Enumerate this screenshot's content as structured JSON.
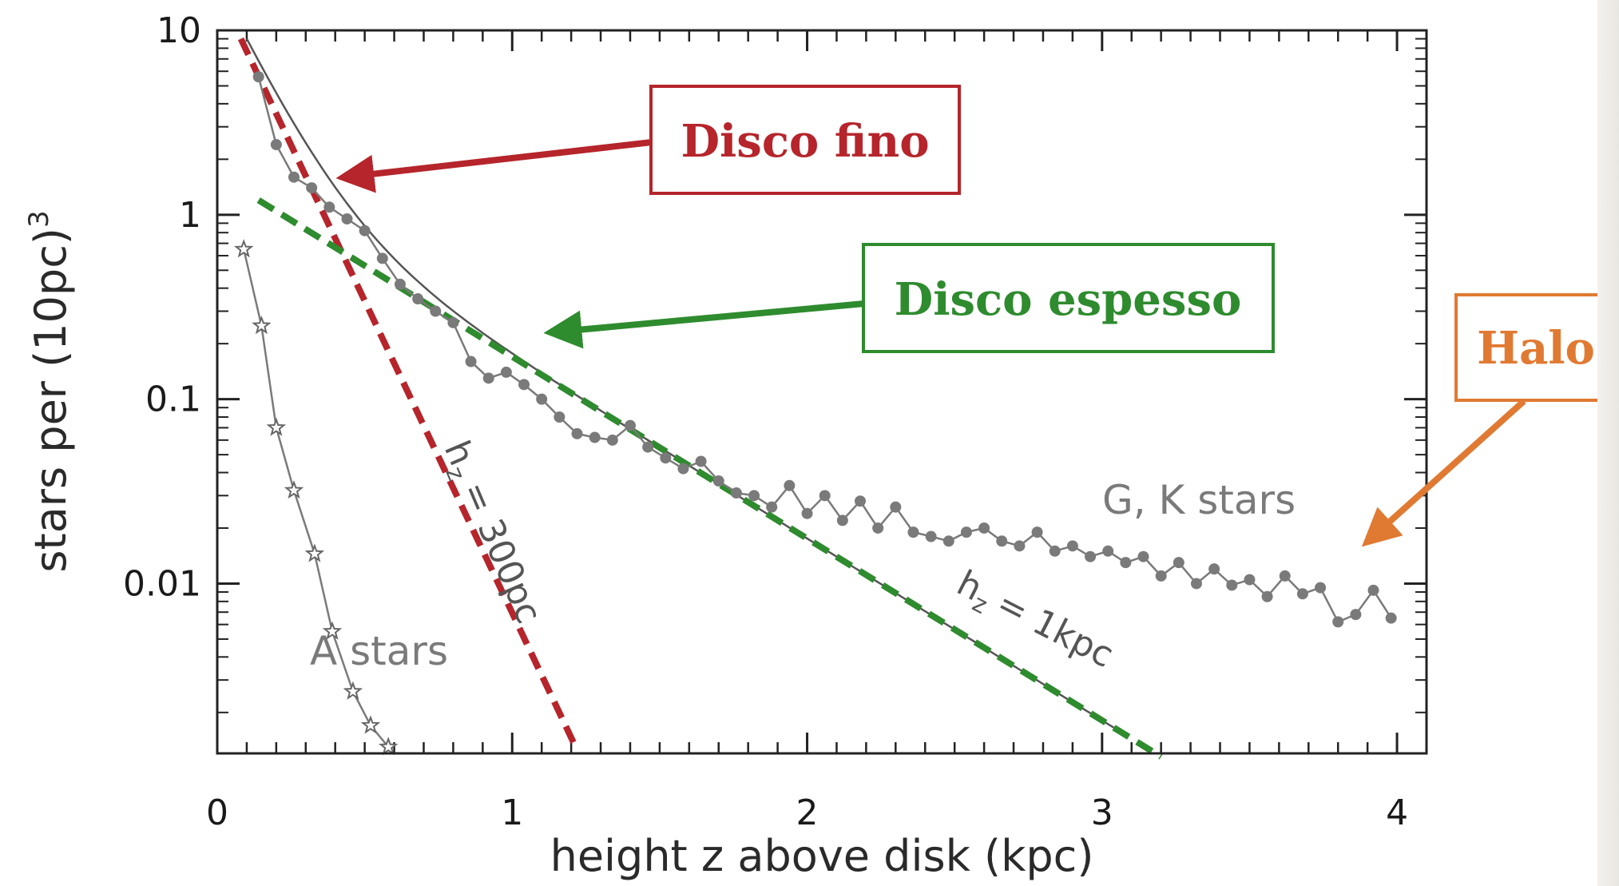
{
  "colors": {
    "thin_disk": "#b5252b",
    "thick_disk": "#2e8b2e",
    "halo": "#e07a32",
    "data_points": "#7a7a7a",
    "axis": "#222222"
  },
  "annotations": {
    "thin_disk": "Disco fino",
    "thick_disk": "Disco espesso",
    "halo": "Halo",
    "gk_stars": "G, K stars",
    "a_stars": "A stars",
    "thin_scale_prefix": "h",
    "thin_scale_sub": "z",
    "thin_scale_value": "= 300pc",
    "thick_scale_prefix": "h",
    "thick_scale_sub": "z",
    "thick_scale_value": "= 1kpc"
  },
  "chart_data": {
    "type": "scatter",
    "xlabel": "height z above disk (kpc)",
    "ylabel": "stars per (10pc)",
    "ylabel_sup": "3",
    "y_scale": "log",
    "xlim": [
      0,
      4.1
    ],
    "ylim": [
      0.0012,
      10
    ],
    "x_ticks": [
      "0",
      "1",
      "2",
      "3",
      "4"
    ],
    "y_ticks": [
      "10",
      "1",
      "0.1",
      "0.01"
    ],
    "series": [
      {
        "name": "G, K stars",
        "marker": "circle",
        "x": [
          0.14,
          0.2,
          0.26,
          0.32,
          0.38,
          0.44,
          0.5,
          0.56,
          0.62,
          0.68,
          0.74,
          0.8,
          0.86,
          0.92,
          0.98,
          1.04,
          1.1,
          1.16,
          1.22,
          1.28,
          1.34,
          1.4,
          1.46,
          1.52,
          1.58,
          1.64,
          1.7,
          1.76,
          1.82,
          1.88,
          1.94,
          2.0,
          2.06,
          2.12,
          2.18,
          2.24,
          2.3,
          2.36,
          2.42,
          2.48,
          2.54,
          2.6,
          2.66,
          2.72,
          2.78,
          2.84,
          2.9,
          2.96,
          3.02,
          3.08,
          3.14,
          3.2,
          3.26,
          3.32,
          3.38,
          3.44,
          3.5,
          3.56,
          3.62,
          3.68,
          3.74,
          3.8,
          3.86,
          3.92,
          3.98
        ],
        "values": [
          5.6,
          2.4,
          1.6,
          1.4,
          1.1,
          0.95,
          0.82,
          0.58,
          0.42,
          0.35,
          0.3,
          0.26,
          0.16,
          0.13,
          0.14,
          0.12,
          0.1,
          0.08,
          0.065,
          0.062,
          0.06,
          0.072,
          0.055,
          0.048,
          0.042,
          0.046,
          0.036,
          0.031,
          0.03,
          0.026,
          0.034,
          0.024,
          0.03,
          0.022,
          0.028,
          0.02,
          0.026,
          0.019,
          0.018,
          0.017,
          0.019,
          0.02,
          0.017,
          0.016,
          0.019,
          0.015,
          0.016,
          0.014,
          0.015,
          0.013,
          0.014,
          0.011,
          0.013,
          0.01,
          0.012,
          0.0098,
          0.0105,
          0.0085,
          0.011,
          0.0088,
          0.0095,
          0.0062,
          0.0068,
          0.0092,
          0.0065
        ]
      },
      {
        "name": "A stars",
        "marker": "star",
        "x": [
          0.09,
          0.15,
          0.2,
          0.26,
          0.33,
          0.39,
          0.46,
          0.52,
          0.58
        ],
        "values": [
          0.65,
          0.25,
          0.07,
          0.032,
          0.0145,
          0.0055,
          0.0026,
          0.0017,
          0.0013
        ]
      },
      {
        "name": "Disco fino",
        "type": "line",
        "x": [
          0.08,
          1.22
        ],
        "values": [
          9.0,
          0.00125
        ]
      },
      {
        "name": "Disco espesso",
        "type": "line",
        "x": [
          0.14,
          3.2
        ],
        "values": [
          1.2,
          0.00115
        ]
      }
    ]
  }
}
